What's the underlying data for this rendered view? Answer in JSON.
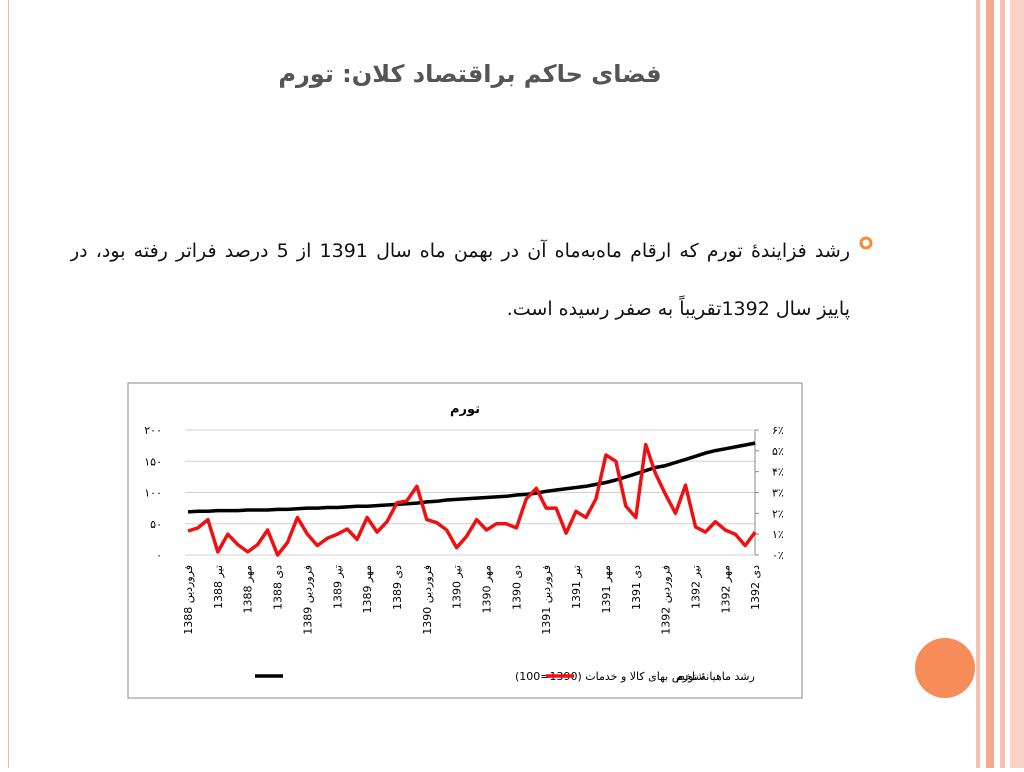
{
  "slide": {
    "title": "فضای حاکم براقتصاد کلان: تورم",
    "bullet": "رشد فزایندهٔ تورم که ارقام ماه‌به‌ماه آن در بهمن ماه سال 1391 از 5 درصد فراتر رفته بود، در پاییز سال 1392تقریباً به صفر رسیده است."
  },
  "chart_data": {
    "type": "line",
    "title": "تورم",
    "categories": [
      "فروردین 1388",
      null,
      null,
      "تیر 1388",
      null,
      null,
      "مهر 1388",
      null,
      null,
      "دی 1388",
      null,
      null,
      "فروردین 1389",
      null,
      null,
      "تیر 1389",
      null,
      null,
      "مهر 1389",
      null,
      null,
      "دی 1389",
      null,
      null,
      "فروردین 1390",
      null,
      null,
      "تیر 1390",
      null,
      null,
      "مهر 1390",
      null,
      null,
      "دی 1390",
      null,
      null,
      "فروردین 1391",
      null,
      null,
      "تیر 1391",
      null,
      null,
      "مهر 1391",
      null,
      null,
      "دی 1391",
      null,
      null,
      "فروردین 1392",
      null,
      null,
      "تیر 1392",
      null,
      null,
      "مهر 1392",
      null,
      null,
      "دی 1392"
    ],
    "series": [
      {
        "name": "شاخص بهای کالا و خدمات (1390=100)",
        "color": "#000000",
        "axis": "y",
        "values": [
          69,
          70,
          70,
          71,
          71,
          71,
          72,
          72,
          72,
          73,
          73,
          74,
          75,
          75,
          76,
          76,
          77,
          78,
          78,
          79,
          80,
          81,
          82,
          83,
          85,
          86,
          88,
          89,
          90,
          91,
          92,
          93,
          94,
          96,
          97,
          99,
          102,
          104,
          106,
          108,
          110,
          113,
          116,
          120,
          125,
          130,
          135,
          140,
          143,
          148,
          153,
          158,
          163,
          167,
          170,
          173,
          176,
          179
        ]
      },
      {
        "name": "رشد ماهیانهٔ تورم",
        "color": "#ee1111",
        "axis": "y2",
        "values": [
          1.15,
          1.3,
          1.7,
          0.15,
          1.0,
          0.5,
          0.15,
          0.5,
          1.2,
          0.0,
          0.6,
          1.8,
          1.0,
          0.45,
          0.8,
          1.0,
          1.25,
          0.75,
          1.8,
          1.1,
          1.6,
          2.5,
          2.6,
          3.3,
          1.7,
          1.55,
          1.2,
          0.35,
          0.9,
          1.7,
          1.2,
          1.5,
          1.5,
          1.3,
          2.7,
          3.2,
          2.25,
          2.25,
          1.05,
          2.1,
          1.8,
          2.7,
          4.8,
          4.5,
          2.35,
          1.8,
          5.3,
          3.9,
          2.9,
          2.0,
          3.35,
          1.35,
          1.1,
          1.6,
          1.2,
          1.0,
          0.45,
          1.1
        ]
      }
    ],
    "ylim": [
      0,
      200
    ],
    "yticks": [
      {
        "value": 0,
        "label": "۰"
      },
      {
        "value": 50,
        "label": "۵۰"
      },
      {
        "value": 100,
        "label": "۱۰۰"
      },
      {
        "value": 150,
        "label": "۱۵۰"
      },
      {
        "value": 200,
        "label": "۲۰۰"
      }
    ],
    "y2lim": [
      0,
      6
    ],
    "y2ticks": [
      {
        "value": 0,
        "label": "۰٪"
      },
      {
        "value": 1,
        "label": "۱٪"
      },
      {
        "value": 2,
        "label": "۲٪"
      },
      {
        "value": 3,
        "label": "۳٪"
      },
      {
        "value": 4,
        "label": "۴٪"
      },
      {
        "value": 5,
        "label": "۵٪"
      },
      {
        "value": 6,
        "label": "۶٪"
      }
    ],
    "grid": true,
    "legend": "bottom"
  }
}
